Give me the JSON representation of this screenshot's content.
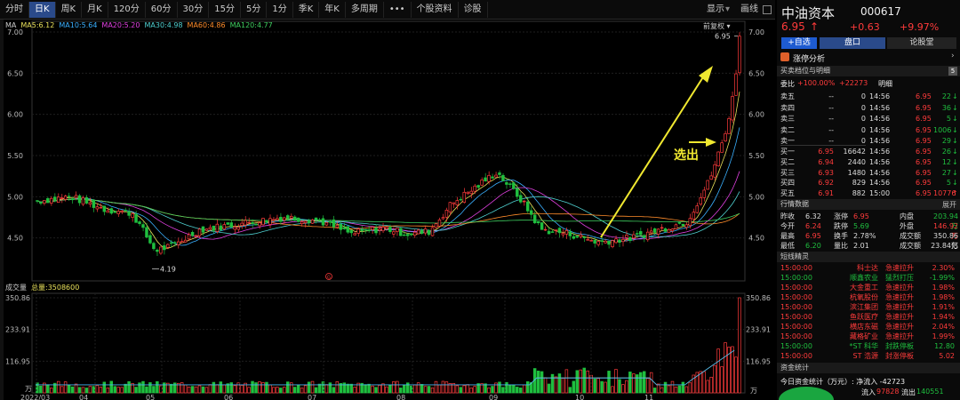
{
  "toolbar": {
    "tabs": [
      "分时",
      "日K",
      "周K",
      "月K",
      "120分",
      "60分",
      "30分",
      "15分",
      "5分",
      "1分",
      "季K",
      "年K",
      "多周期",
      "•••",
      "个股资料",
      "诊股"
    ],
    "active_tab": 1,
    "display": "显示",
    "draw": "画线"
  },
  "ma": {
    "label": "MA",
    "items": [
      {
        "text": "MA5:6.12",
        "color": "#e8e05a"
      },
      {
        "text": "MA10:5.64",
        "color": "#3ab0ff"
      },
      {
        "text": "MA20:5.20",
        "color": "#e040e0"
      },
      {
        "text": "MA30:4.98",
        "color": "#4fd0d0"
      },
      {
        "text": "MA60:4.86",
        "color": "#ff8c2a"
      },
      {
        "text": "MA120:4.77",
        "color": "#3fd060"
      }
    ],
    "colors": {
      "ma5": "#e8e05a",
      "ma10": "#3ab0ff",
      "ma20": "#e040e0",
      "ma30": "#4fd0d0",
      "ma60": "#ff8c2a",
      "ma120": "#3fd060"
    }
  },
  "fq": "前复权",
  "vol": {
    "label": "成交量",
    "total": "总量:3508600"
  },
  "annotation": "选出",
  "chart_data": {
    "type": "candlestick",
    "price_axis": {
      "ticks": [
        "7.00",
        "6.50",
        "6.00",
        "5.50",
        "5.00",
        "4.50"
      ],
      "min": 4.0,
      "max": 7.0
    },
    "vol_axis": {
      "ticks": [
        "350.86",
        "233.91",
        "116.95"
      ],
      "unit": "万",
      "max": 350.86
    },
    "x_labels": [
      "2022/03",
      "04",
      "05",
      "06",
      "07",
      "08",
      "09",
      "10",
      "11"
    ],
    "high_label": "6.95",
    "low_label": "4.19",
    "marker": "G"
  },
  "quote": {
    "name": "中油资本",
    "code": "000617",
    "price": "6.95",
    "arrow": "↑",
    "change": "+0.63",
    "pct": "+9.97%",
    "btn_add": "+自选",
    "tab_book": "盘口",
    "tab_forum": "论股堂",
    "zt_analysis": "涨停分析",
    "ob_title": "买卖档位与明细",
    "ob_badge": "5",
    "weibi_label": "委比",
    "weibi_pct": "+100.00%",
    "weibi_val": "+22273",
    "detail": "明细",
    "asks": [
      {
        "label": "卖五",
        "price": "--",
        "vol": "0"
      },
      {
        "label": "卖四",
        "price": "--",
        "vol": "0"
      },
      {
        "label": "卖三",
        "price": "--",
        "vol": "0"
      },
      {
        "label": "卖二",
        "price": "--",
        "vol": "0"
      },
      {
        "label": "卖一",
        "price": "--",
        "vol": "0"
      }
    ],
    "bids": [
      {
        "label": "买一",
        "price": "6.95",
        "vol": "16642"
      },
      {
        "label": "买二",
        "price": "6.94",
        "vol": "2440"
      },
      {
        "label": "买三",
        "price": "6.93",
        "vol": "1480"
      },
      {
        "label": "买四",
        "price": "6.92",
        "vol": "829"
      },
      {
        "label": "买五",
        "price": "6.91",
        "vol": "882"
      }
    ],
    "ticks": [
      {
        "t": "14:56",
        "p": "6.95",
        "v": "22",
        "d": "↓",
        "c": "grn"
      },
      {
        "t": "14:56",
        "p": "6.95",
        "v": "36",
        "d": "↓",
        "c": "grn"
      },
      {
        "t": "14:56",
        "p": "6.95",
        "v": "5",
        "d": "↓",
        "c": "grn"
      },
      {
        "t": "14:56",
        "p": "6.95",
        "v": "1006",
        "d": "↓",
        "c": "grn"
      },
      {
        "t": "14:56",
        "p": "6.95",
        "v": "29",
        "d": "↓",
        "c": "grn"
      },
      {
        "t": "14:56",
        "p": "6.95",
        "v": "26",
        "d": "↓",
        "c": "grn"
      },
      {
        "t": "14:56",
        "p": "6.95",
        "v": "12",
        "d": "↓",
        "c": "grn"
      },
      {
        "t": "14:56",
        "p": "6.95",
        "v": "27",
        "d": "↓",
        "c": "grn"
      },
      {
        "t": "14:56",
        "p": "6.95",
        "v": "5",
        "d": "↓",
        "c": "grn"
      },
      {
        "t": "15:00",
        "p": "6.95",
        "v": "10776",
        "d": "↑",
        "c": "red"
      }
    ],
    "market_title": "行情数据",
    "expand": "展开",
    "market": [
      [
        "昨收",
        "6.32",
        "涨停",
        "6.95",
        "内盘",
        "203.94万"
      ],
      [
        "今开",
        "6.24",
        "跌停",
        "5.69",
        "外盘",
        "146.92万"
      ],
      [
        "最高",
        "6.95",
        "换手",
        "2.78%",
        "成交额",
        "350.86万"
      ],
      [
        "最低",
        "6.20",
        "量比",
        "2.01",
        "成交额",
        "23.84亿"
      ]
    ],
    "sprite_title": "短线精灵",
    "sprites": [
      {
        "t": "15:00:00",
        "n": "科士达",
        "e": "急速拉升",
        "v": "2.30%",
        "c": "red"
      },
      {
        "t": "15:00:00",
        "n": "顺鑫农业",
        "e": "猛烈打压",
        "v": "-1.99%",
        "c": "grn"
      },
      {
        "t": "15:00:00",
        "n": "大金重工",
        "e": "急速拉升",
        "v": "1.98%",
        "c": "red"
      },
      {
        "t": "15:00:00",
        "n": "杭氧股份",
        "e": "急速拉升",
        "v": "1.98%",
        "c": "red"
      },
      {
        "t": "15:00:00",
        "n": "滨江集团",
        "e": "急速拉升",
        "v": "1.91%",
        "c": "red"
      },
      {
        "t": "15:00:00",
        "n": "鱼跃医疗",
        "e": "急速拉升",
        "v": "1.94%",
        "c": "red"
      },
      {
        "t": "15:00:00",
        "n": "横店东磁",
        "e": "急速拉升",
        "v": "2.04%",
        "c": "red"
      },
      {
        "t": "15:00:00",
        "n": "藏格矿业",
        "e": "急速拉升",
        "v": "1.99%",
        "c": "red"
      },
      {
        "t": "15:00:00",
        "n": "*ST 科华",
        "e": "封跌停板",
        "v": "12.80",
        "c": "grn"
      },
      {
        "t": "15:00:00",
        "n": "ST 浩源",
        "e": "封涨停板",
        "v": "5.02",
        "c": "red"
      }
    ],
    "fund_title": "资金统计",
    "fund_line1": "今日资金统计（万元）: 净流入 -42723",
    "fund_in_label": "流入",
    "fund_in": "97828",
    "fund_out_label": "流出",
    "fund_out": "140551"
  }
}
